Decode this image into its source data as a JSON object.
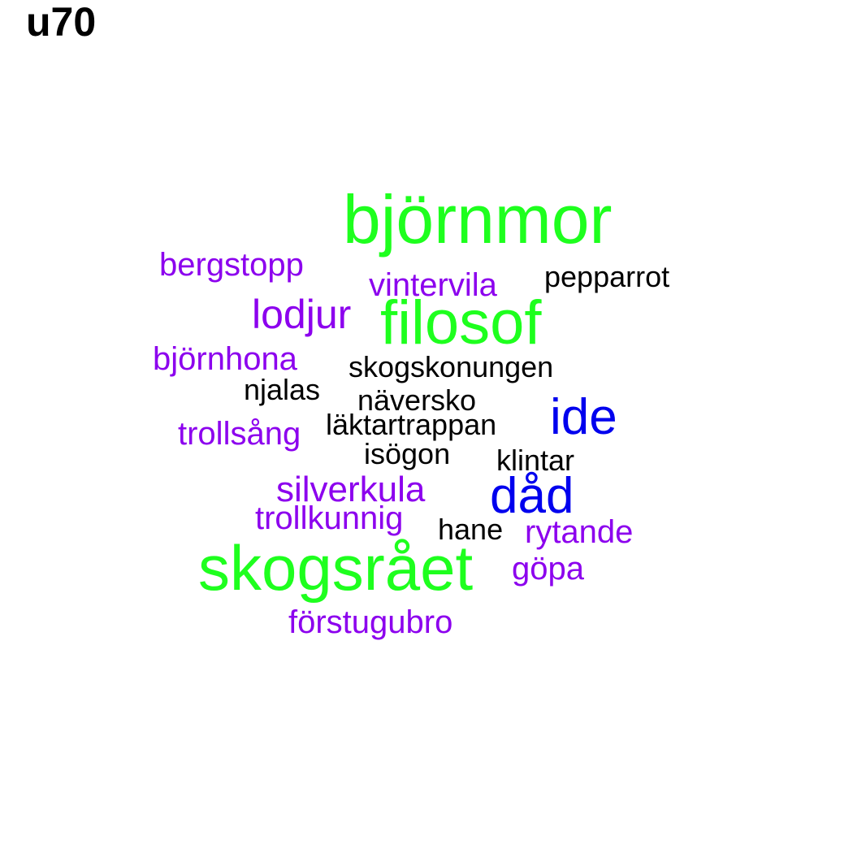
{
  "title": "u70",
  "colors": {
    "green": "#1eff1e",
    "blue": "#0000ee",
    "purple": "#8c00ee",
    "black": "#000000"
  },
  "words": [
    {
      "text": "björnmor",
      "color": "green"
    },
    {
      "text": "filosof",
      "color": "green"
    },
    {
      "text": "skogsrået",
      "color": "green"
    },
    {
      "text": "ide",
      "color": "blue"
    },
    {
      "text": "dåd",
      "color": "blue"
    },
    {
      "text": "lodjur",
      "color": "purple"
    },
    {
      "text": "bergstopp",
      "color": "purple"
    },
    {
      "text": "vintervila",
      "color": "purple"
    },
    {
      "text": "björnhona",
      "color": "purple"
    },
    {
      "text": "trollsång",
      "color": "purple"
    },
    {
      "text": "silverkula",
      "color": "purple"
    },
    {
      "text": "trollkunnig",
      "color": "purple"
    },
    {
      "text": "rytande",
      "color": "purple"
    },
    {
      "text": "göpa",
      "color": "purple"
    },
    {
      "text": "förstugubro",
      "color": "purple"
    },
    {
      "text": "pepparrot",
      "color": "black"
    },
    {
      "text": "skogskonungen",
      "color": "black"
    },
    {
      "text": "njalas",
      "color": "black"
    },
    {
      "text": "näversko",
      "color": "black"
    },
    {
      "text": "läktartrappan",
      "color": "black"
    },
    {
      "text": "isögon",
      "color": "black"
    },
    {
      "text": "klintar",
      "color": "black"
    },
    {
      "text": "hane",
      "color": "black"
    }
  ]
}
